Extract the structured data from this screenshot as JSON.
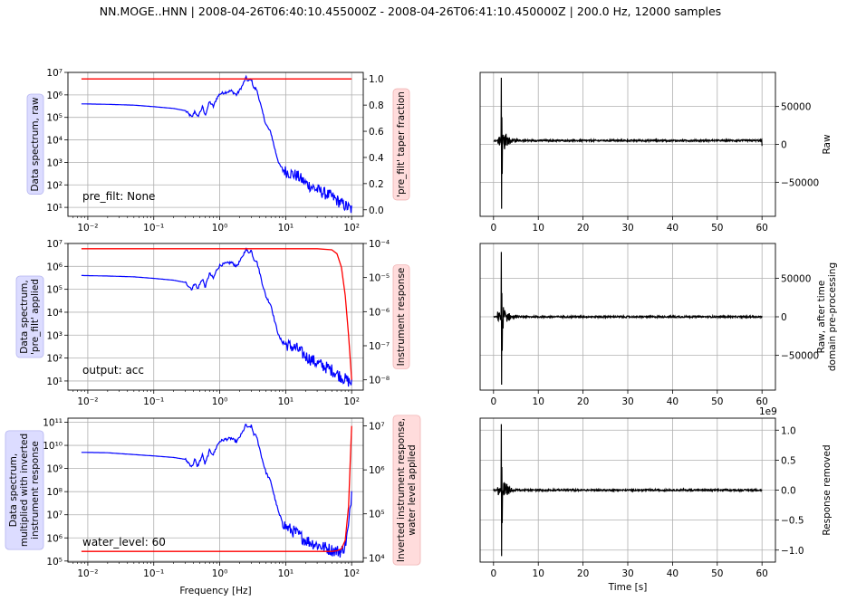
{
  "suptitle": "NN.MOGE..HNN | 2008-04-26T06:40:10.455000Z - 2008-04-26T06:41:10.450000Z | 200.0 Hz, 12000 samples",
  "colors": {
    "spectrum": "#0000ff",
    "response": "#ff0000",
    "trace": "#000000",
    "grid": "#b0b0b0",
    "left_label_bg": "#dcdcff",
    "right_label_bg": "#ffdcdc"
  },
  "chart_data": [
    {
      "id": "spec1",
      "type": "line",
      "xscale": "log",
      "xlim": [
        0.005,
        150
      ],
      "xticks": [
        0.01,
        0.1,
        1,
        10,
        100
      ],
      "xtick_labels": [
        "10⁻²",
        "10⁻¹",
        "10⁰",
        "10¹",
        "10²"
      ],
      "ylim_left": [
        4,
        10000000
      ],
      "yticks_left": [
        10,
        100,
        1000,
        10000,
        100000,
        1000000,
        10000000
      ],
      "ytick_labels_left": [
        "10¹",
        "10²",
        "10³",
        "10⁴",
        "10⁵",
        "10⁶",
        "10⁷"
      ],
      "ylabel_left": "Data spectrum, raw",
      "ylim_right": [
        -0.05,
        1.05
      ],
      "yscale_right": "linear",
      "yticks_right": [
        0,
        0.2,
        0.4,
        0.6,
        0.8,
        1.0
      ],
      "ytick_labels_right": [
        "0.0",
        "0.2",
        "0.4",
        "0.6",
        "0.8",
        "1.0"
      ],
      "ylabel_right": "'pre_filt' taper fraction",
      "annotation": "pre_filt: None",
      "xlabel": "",
      "series": [
        {
          "axis": "left",
          "x": [
            0.008,
            0.02,
            0.05,
            0.1,
            0.2,
            0.3,
            0.38,
            0.42,
            0.46,
            0.55,
            0.6,
            0.7,
            0.8,
            0.9,
            1.0,
            1.2,
            1.5,
            1.8,
            2.2,
            2.5,
            2.7,
            3.0,
            3.3,
            3.6,
            4.0,
            4.5,
            5.0,
            6.0,
            7.0,
            8.0,
            9.0,
            10,
            15,
            20,
            30,
            50,
            70,
            100
          ],
          "y": [
            400000,
            380000,
            350000,
            300000,
            250000,
            200000,
            100000,
            200000,
            100000,
            300000,
            120000,
            500000,
            300000,
            700000,
            1100000,
            1300000,
            1500000,
            1000000,
            2500000,
            6000000,
            4000000,
            5000000,
            2000000,
            1800000,
            600000,
            150000,
            50000,
            20000,
            3000,
            800,
            500,
            400,
            250,
            120,
            60,
            30,
            15,
            8
          ]
        },
        {
          "axis": "right",
          "x": [
            0.008,
            100
          ],
          "y": [
            1.0,
            1.0
          ]
        }
      ]
    },
    {
      "id": "spec2",
      "type": "line",
      "xscale": "log",
      "xlim": [
        0.005,
        150
      ],
      "xticks": [
        0.01,
        0.1,
        1,
        10,
        100
      ],
      "xtick_labels": [
        "10⁻²",
        "10⁻¹",
        "10⁰",
        "10¹",
        "10²"
      ],
      "ylim_left": [
        4,
        10000000
      ],
      "yticks_left": [
        10,
        100,
        1000,
        10000,
        100000,
        1000000,
        10000000
      ],
      "ytick_labels_left": [
        "10¹",
        "10²",
        "10³",
        "10⁴",
        "10⁵",
        "10⁶",
        "10⁷"
      ],
      "ylabel_left": "Data spectrum,\n'pre_filt' applied",
      "ylim_right": [
        5e-09,
        0.0001
      ],
      "yscale_right": "log",
      "yticks_right": [
        1e-08,
        1e-07,
        1e-06,
        1e-05,
        0.0001
      ],
      "ytick_labels_right": [
        "10⁻⁸",
        "10⁻⁷",
        "10⁻⁶",
        "10⁻⁵",
        "10⁻⁴"
      ],
      "ylabel_right": "Instrument response",
      "annotation": "output: acc",
      "xlabel": "",
      "series": [
        {
          "axis": "left",
          "x": [
            0.008,
            0.02,
            0.05,
            0.1,
            0.2,
            0.3,
            0.38,
            0.42,
            0.46,
            0.55,
            0.6,
            0.7,
            0.8,
            0.9,
            1.0,
            1.2,
            1.5,
            1.8,
            2.2,
            2.5,
            2.7,
            3.0,
            3.3,
            3.6,
            4.0,
            4.5,
            5.0,
            6.0,
            7.0,
            8.0,
            9.0,
            10,
            15,
            20,
            30,
            50,
            70,
            100
          ],
          "y": [
            400000,
            380000,
            350000,
            300000,
            250000,
            200000,
            100000,
            200000,
            100000,
            300000,
            120000,
            500000,
            300000,
            700000,
            1100000,
            1300000,
            1500000,
            1000000,
            2500000,
            6000000,
            4000000,
            5000000,
            2000000,
            1800000,
            600000,
            150000,
            50000,
            20000,
            3000,
            800,
            500,
            400,
            250,
            120,
            60,
            30,
            15,
            8
          ]
        },
        {
          "axis": "right",
          "x": [
            0.008,
            10,
            30,
            50,
            60,
            70,
            80,
            90,
            100
          ],
          "y": [
            7e-05,
            7e-05,
            7e-05,
            6.5e-05,
            5e-05,
            2e-05,
            3e-06,
            2e-07,
            1e-08
          ]
        }
      ]
    },
    {
      "id": "spec3",
      "type": "line",
      "xscale": "log",
      "xlim": [
        0.005,
        150
      ],
      "xticks": [
        0.01,
        0.1,
        1,
        10,
        100
      ],
      "xtick_labels": [
        "10⁻²",
        "10⁻¹",
        "10⁰",
        "10¹",
        "10²"
      ],
      "ylim_left": [
        90000,
        150000000000
      ],
      "yticks_left": [
        100000,
        1000000,
        10000000,
        100000000,
        1000000000,
        10000000000,
        100000000000
      ],
      "ytick_labels_left": [
        "10⁵",
        "10⁶",
        "10⁷",
        "10⁸",
        "10⁹",
        "10¹⁰",
        "10¹¹"
      ],
      "ylabel_left": "Data spectrum,\nmultiplied with inverted\ninstrument response",
      "ylim_right": [
        8000,
        15000000
      ],
      "yscale_right": "log",
      "yticks_right": [
        10000,
        100000,
        1000000,
        10000000
      ],
      "ytick_labels_right": [
        "10⁴",
        "10⁵",
        "10⁶",
        "10⁷"
      ],
      "ylabel_right": "Inverted instrument response,\nwater level applied",
      "annotation": "water_level: 60",
      "xlabel": "Frequency [Hz]",
      "series": [
        {
          "axis": "left",
          "x": [
            0.008,
            0.02,
            0.05,
            0.1,
            0.2,
            0.3,
            0.38,
            0.42,
            0.46,
            0.55,
            0.6,
            0.7,
            0.8,
            0.9,
            1.0,
            1.2,
            1.5,
            1.8,
            2.2,
            2.5,
            2.7,
            3.0,
            3.3,
            3.6,
            4.0,
            4.5,
            5.0,
            6.0,
            7.0,
            8.0,
            9.0,
            10,
            15,
            20,
            30,
            50,
            70,
            80,
            90,
            100
          ],
          "y": [
            5000000000,
            4800000000,
            4000000000,
            3500000000,
            3000000000,
            2500000000,
            1200000000,
            2500000000,
            1200000000,
            4000000000,
            1500000000,
            6000000000,
            4000000000,
            9000000000,
            15000000000,
            18000000000,
            20000000000,
            14000000000,
            35000000000,
            80000000000,
            55000000000,
            70000000000,
            30000000000,
            25000000000,
            8000000000,
            2000000000,
            700000000,
            250000000,
            40000000,
            10000000,
            5000000,
            3000000,
            1500000,
            800000,
            500000,
            300000,
            250000,
            500000,
            3000000,
            100000000
          ]
        },
        {
          "axis": "right",
          "x": [
            0.008,
            20,
            40,
            50,
            60,
            70,
            80,
            90,
            95,
            100
          ],
          "y": [
            14000,
            14000,
            14000,
            14000,
            14500,
            16000,
            25000,
            150000,
            1500000,
            10000000
          ]
        }
      ]
    },
    {
      "id": "trace1",
      "type": "line",
      "xlim": [
        -3,
        63
      ],
      "xticks": [
        0,
        10,
        20,
        30,
        40,
        50,
        60
      ],
      "xtick_labels": [
        "0",
        "10",
        "20",
        "30",
        "40",
        "50",
        "60"
      ],
      "ylim": [
        -95000,
        95000
      ],
      "yticks": [
        -50000,
        0,
        50000
      ],
      "ytick_labels": [
        "−50000",
        "0",
        "50000"
      ],
      "ylabel": "Raw",
      "offset_label": "",
      "xlabel": "",
      "baseline": 5000,
      "end_drop": -2000,
      "peak_pos": 88000,
      "peak_neg": -85000,
      "peak_time": 1.7
    },
    {
      "id": "trace2",
      "type": "line",
      "xlim": [
        -3,
        63
      ],
      "xticks": [
        0,
        10,
        20,
        30,
        40,
        50,
        60
      ],
      "xtick_labels": [
        "0",
        "10",
        "20",
        "30",
        "40",
        "50",
        "60"
      ],
      "ylim": [
        -95000,
        95000
      ],
      "yticks": [
        -50000,
        0,
        50000
      ],
      "ytick_labels": [
        "−50000",
        "0",
        "50000"
      ],
      "ylabel": "Raw, after time\ndomain pre-processing",
      "offset_label": "",
      "xlabel": "",
      "baseline": 0,
      "end_drop": 0,
      "peak_pos": 84000,
      "peak_neg": -88000,
      "peak_time": 1.7
    },
    {
      "id": "trace3",
      "type": "line",
      "xlim": [
        -3,
        63
      ],
      "xticks": [
        0,
        10,
        20,
        30,
        40,
        50,
        60
      ],
      "xtick_labels": [
        "0",
        "10",
        "20",
        "30",
        "40",
        "50",
        "60"
      ],
      "ylim": [
        -1.2,
        1.2
      ],
      "yticks": [
        -1.0,
        -0.5,
        0.0,
        0.5,
        1.0
      ],
      "ytick_labels": [
        "−1.0",
        "−0.5",
        "0.0",
        "0.5",
        "1.0"
      ],
      "ylabel": "Response removed",
      "offset_label": "1e9",
      "xlabel": "Time [s]",
      "baseline": 0,
      "end_drop": 0,
      "peak_pos": 1.1,
      "peak_neg": -1.1,
      "peak_time": 1.7
    }
  ]
}
